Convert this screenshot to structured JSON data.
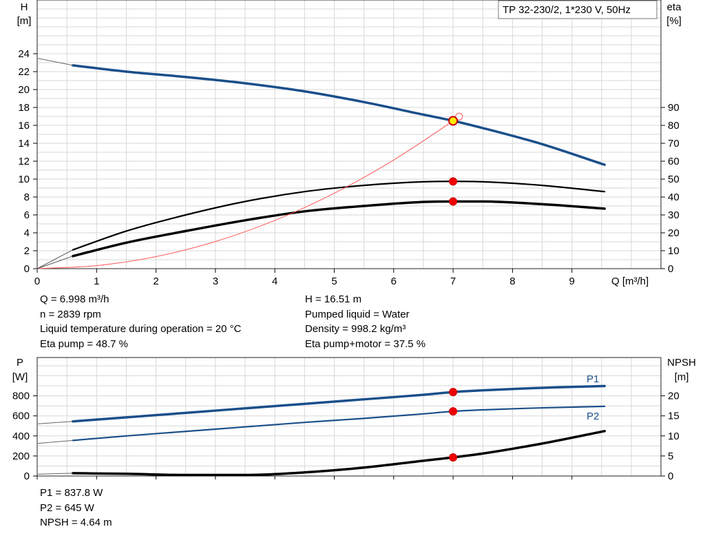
{
  "chart_data": [
    {
      "type": "line",
      "title": "TP 32-230/2, 1*230 V, 50Hz",
      "xlabel": "Q [m³/h]",
      "ylabel_left": [
        "H",
        "[m]"
      ],
      "ylabel_right": [
        "eta",
        "[%]"
      ],
      "xlim": [
        0,
        10.5
      ],
      "ylim_left": [
        0,
        30
      ],
      "ylim_right": [
        0,
        115.4
      ],
      "grid": true,
      "x_ticks": [
        "0",
        "1",
        "2",
        "3",
        "4",
        "5",
        "6",
        "7",
        "8",
        "9"
      ],
      "y_ticks_left": [
        "0",
        "2",
        "4",
        "6",
        "8",
        "10",
        "12",
        "14",
        "16",
        "18",
        "20",
        "22",
        "24"
      ],
      "y_ticks_right": [
        "0",
        "10",
        "20",
        "30",
        "40",
        "50",
        "60",
        "70",
        "80",
        "90"
      ],
      "series": [
        {
          "name": "H",
          "axis": "left",
          "color": "#1a4f8a",
          "x": [
            0.6,
            1.5,
            2.5,
            3.5,
            4.5,
            5.5,
            6.5,
            7.0,
            7.5,
            8.5,
            9.55
          ],
          "y": [
            22.7,
            22.0,
            21.4,
            20.7,
            19.8,
            18.6,
            17.2,
            16.51,
            15.7,
            13.9,
            11.6
          ]
        },
        {
          "name": "H (extrapolated)",
          "axis": "left",
          "color": "#666666",
          "x": [
            0,
            0.3,
            0.6
          ],
          "y": [
            23.5,
            23.1,
            22.7
          ]
        },
        {
          "name": "eta pump",
          "axis": "left",
          "color": "#000000",
          "x": [
            0.6,
            1.5,
            2.5,
            3.5,
            4.5,
            5.5,
            6.5,
            7.0,
            7.5,
            8.5,
            9.55
          ],
          "y": [
            2.1,
            4.2,
            6.0,
            7.5,
            8.6,
            9.3,
            9.7,
            9.75,
            9.7,
            9.3,
            8.6
          ]
        },
        {
          "name": "eta pump+motor",
          "axis": "left",
          "color": "#000000",
          "x": [
            0.6,
            1.5,
            2.5,
            3.5,
            4.5,
            5.5,
            6.5,
            7.0,
            7.5,
            8.5,
            9.55
          ],
          "y": [
            1.4,
            2.9,
            4.2,
            5.4,
            6.4,
            7.0,
            7.45,
            7.5,
            7.5,
            7.2,
            6.7
          ]
        },
        {
          "name": "system curve",
          "axis": "left",
          "color": "#ff5555",
          "x": [
            0,
            1,
            2,
            3,
            4,
            5,
            6,
            7,
            7.1
          ],
          "y": [
            0,
            0.34,
            1.35,
            3.03,
            5.39,
            8.42,
            12.13,
            16.51,
            16.98
          ]
        }
      ],
      "duty_points": [
        {
          "x": 7.0,
          "y": 16.51,
          "kind": "yellow"
        },
        {
          "x": 7.0,
          "y": 9.74,
          "kind": "red"
        },
        {
          "x": 7.0,
          "y": 7.5,
          "kind": "red"
        }
      ],
      "info": [
        "Q = 6.998 m³/h",
        "n = 2839 rpm",
        "Liquid temperature during operation = 20 °C",
        "Eta pump = 48.7 %",
        "H = 16.51 m",
        "Pumped liquid = Water",
        "Density = 998.2 kg/m³",
        "Eta pump+motor = 37.5 %"
      ]
    },
    {
      "type": "line",
      "xlim": [
        0,
        10.5
      ],
      "ylabel_left": [
        "P",
        "[W]"
      ],
      "ylabel_right": [
        "NPSH",
        "[m]"
      ],
      "ylim_left": [
        0,
        1045
      ],
      "ylim_right": [
        0,
        26.1
      ],
      "grid": true,
      "y_ticks_left": [
        "0",
        "200",
        "400",
        "600",
        "800"
      ],
      "y_ticks_right": [
        "0",
        "5",
        "10",
        "15",
        "20"
      ],
      "series": [
        {
          "name": "P1",
          "axis": "left",
          "color": "#1a4f8a",
          "label": "P1",
          "x": [
            0.6,
            1.5,
            2.5,
            3.5,
            4.5,
            5.5,
            6.5,
            7.0,
            7.5,
            8.5,
            9.55
          ],
          "y": [
            545,
            585,
            630,
            675,
            720,
            765,
            810,
            837.8,
            855,
            880,
            898
          ]
        },
        {
          "name": "P1 (extrapolated)",
          "axis": "left",
          "color": "#666666",
          "x": [
            0,
            0.6
          ],
          "y": [
            520,
            545
          ]
        },
        {
          "name": "P2",
          "axis": "left",
          "color": "#1a4f8a",
          "label": "P2",
          "x": [
            0.6,
            1.5,
            2.5,
            3.5,
            4.5,
            5.5,
            6.5,
            7.0,
            7.5,
            8.5,
            9.55
          ],
          "y": [
            355,
            400,
            445,
            490,
            535,
            575,
            620,
            645,
            660,
            680,
            695
          ]
        },
        {
          "name": "P2 (extrapolated)",
          "axis": "left",
          "color": "#666666",
          "x": [
            0,
            0.6
          ],
          "y": [
            325,
            355
          ]
        },
        {
          "name": "NPSH",
          "axis": "right",
          "color": "#000000",
          "x": [
            0.6,
            1.5,
            2.5,
            3.5,
            4.5,
            5.5,
            6.5,
            7.0,
            7.5,
            8.5,
            9.55
          ],
          "y": [
            0.7,
            0.55,
            0.25,
            0.25,
            0.9,
            2.1,
            3.8,
            4.64,
            5.6,
            8.1,
            11.2
          ]
        },
        {
          "name": "NPSH (extrapolated)",
          "axis": "right",
          "color": "#666666",
          "x": [
            0,
            0.6
          ],
          "y": [
            0.45,
            0.7
          ]
        }
      ],
      "duty_points": [
        {
          "x": 7.0,
          "y": 837.8,
          "axis": "left"
        },
        {
          "x": 7.0,
          "y": 645,
          "axis": "left"
        },
        {
          "x": 7.0,
          "y": 4.64,
          "axis": "right"
        }
      ],
      "info": [
        "P1 = 837.8 W",
        "P2 = 645 W",
        "NPSH = 4.64 m"
      ]
    }
  ]
}
